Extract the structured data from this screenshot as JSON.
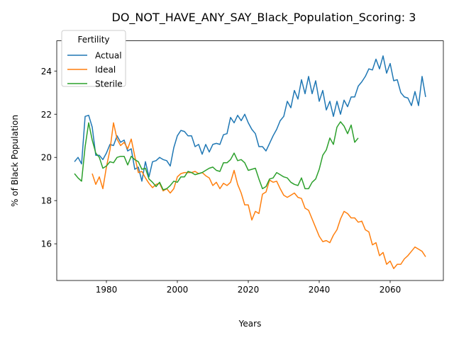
{
  "chart_data": {
    "type": "line",
    "title": "DO_NOT_HAVE_ANY_SAY_Black_Population_Scoring: 3",
    "xlabel": "Years",
    "ylabel": "% of Black Population",
    "xlim": [
      1966,
      2075
    ],
    "ylim": [
      14.3,
      25.4
    ],
    "xticks": [
      1980,
      2000,
      2020,
      2040,
      2060
    ],
    "yticks": [
      16,
      18,
      20,
      22,
      24
    ],
    "grid": false,
    "legend": {
      "title": "Fertility",
      "placement": "top-left"
    },
    "series": [
      {
        "name": "Actual",
        "color": "#1f77b4",
        "x": [
          1971,
          1972,
          1973,
          1974,
          1975,
          1976,
          1977,
          1978,
          1979,
          1980,
          1981,
          1982,
          1983,
          1984,
          1985,
          1986,
          1987,
          1988,
          1989,
          1990,
          1991,
          1992,
          1993,
          1994,
          1995,
          1996,
          1997,
          1998,
          1999,
          2000,
          2001,
          2002,
          2003,
          2004,
          2005,
          2006,
          2007,
          2008,
          2009,
          2010,
          2011,
          2012,
          2013,
          2014,
          2015,
          2016,
          2017,
          2018,
          2019,
          2020,
          2021,
          2022,
          2023,
          2024,
          2025,
          2026,
          2027,
          2028,
          2029,
          2030,
          2031,
          2032,
          2033,
          2034,
          2035,
          2036,
          2037,
          2038,
          2039,
          2040,
          2041,
          2042,
          2043,
          2044,
          2045,
          2046,
          2047,
          2048,
          2049,
          2050,
          2051,
          2052,
          2053,
          2054,
          2055,
          2056,
          2057,
          2058,
          2059,
          2060,
          2061,
          2062,
          2063,
          2064,
          2065,
          2066,
          2067,
          2068,
          2069,
          2070
        ],
        "y": [
          19.8,
          20.0,
          19.7,
          21.9,
          21.95,
          21.4,
          20.1,
          20.1,
          19.9,
          20.2,
          20.6,
          20.55,
          21.0,
          20.7,
          20.8,
          20.3,
          20.4,
          19.45,
          19.55,
          18.9,
          19.8,
          19.1,
          19.8,
          19.85,
          20.0,
          19.9,
          19.85,
          19.6,
          20.45,
          21.0,
          21.25,
          21.2,
          21.0,
          21.0,
          20.5,
          20.6,
          20.15,
          20.6,
          20.25,
          20.6,
          20.65,
          20.6,
          21.05,
          21.1,
          21.85,
          21.6,
          21.95,
          21.7,
          22.0,
          21.6,
          21.3,
          21.1,
          20.5,
          20.5,
          20.3,
          20.65,
          21.0,
          21.3,
          21.7,
          21.9,
          22.6,
          22.3,
          23.1,
          22.7,
          23.6,
          22.95,
          23.75,
          22.95,
          23.55,
          22.6,
          23.1,
          22.2,
          22.6,
          21.9,
          22.6,
          22.0,
          22.65,
          22.35,
          22.8,
          22.8,
          23.3,
          23.5,
          23.75,
          24.1,
          24.05,
          24.55,
          24.1,
          24.7,
          23.9,
          24.35,
          23.55,
          23.6,
          23.0,
          22.8,
          22.75,
          22.4,
          23.05,
          22.4,
          23.75,
          22.8
        ]
      },
      {
        "name": "Ideal",
        "color": "#ff7f0e",
        "x": [
          1976,
          1977,
          1978,
          1979,
          1980,
          1981,
          1982,
          1983,
          1984,
          1985,
          1986,
          1987,
          1988,
          1989,
          1990,
          1991,
          1992,
          1993,
          1994,
          1995,
          1996,
          1997,
          1998,
          1999,
          2000,
          2001,
          2002,
          2003,
          2004,
          2005,
          2006,
          2007,
          2008,
          2009,
          2010,
          2011,
          2012,
          2013,
          2014,
          2015,
          2016,
          2017,
          2018,
          2019,
          2020,
          2021,
          2022,
          2023,
          2024,
          2025,
          2026,
          2027,
          2028,
          2029,
          2030,
          2031,
          2032,
          2033,
          2034,
          2035,
          2036,
          2037,
          2038,
          2039,
          2040,
          2041,
          2042,
          2043,
          2044,
          2045,
          2046,
          2047,
          2048,
          2049,
          2050,
          2051,
          2052,
          2053,
          2054,
          2055,
          2056,
          2057,
          2058,
          2059,
          2060,
          2061,
          2062,
          2063,
          2064,
          2065,
          2066,
          2067,
          2068,
          2069,
          2070
        ],
        "y": [
          19.25,
          18.75,
          19.1,
          18.55,
          19.55,
          20.35,
          21.6,
          20.85,
          20.55,
          20.7,
          20.4,
          20.85,
          20.05,
          19.3,
          19.35,
          19.05,
          18.8,
          18.6,
          18.75,
          18.8,
          18.45,
          18.55,
          18.35,
          18.55,
          19.1,
          19.25,
          19.3,
          19.3,
          19.3,
          19.35,
          19.25,
          19.3,
          19.15,
          19.05,
          18.7,
          18.85,
          18.55,
          18.8,
          18.7,
          18.85,
          19.4,
          18.75,
          18.35,
          17.8,
          17.8,
          17.1,
          17.5,
          17.4,
          18.3,
          18.4,
          18.95,
          18.85,
          18.9,
          18.55,
          18.25,
          18.15,
          18.25,
          18.35,
          18.15,
          18.1,
          17.65,
          17.55,
          17.15,
          16.75,
          16.35,
          16.1,
          16.15,
          16.05,
          16.4,
          16.65,
          17.15,
          17.5,
          17.4,
          17.2,
          17.2,
          17.0,
          17.05,
          16.65,
          16.55,
          15.95,
          16.05,
          15.45,
          15.6,
          15.05,
          15.2,
          14.85,
          15.05,
          15.05,
          15.3,
          15.45,
          15.65,
          15.85,
          15.75,
          15.65,
          15.4
        ]
      },
      {
        "name": "Sterile",
        "color": "#2ca02c",
        "x": [
          1971,
          1972,
          1973,
          1974,
          1975,
          1976,
          1977,
          1978,
          1979,
          1980,
          1981,
          1982,
          1983,
          1984,
          1985,
          1986,
          1987,
          1988,
          1989,
          1990,
          1991,
          1992,
          1993,
          1994,
          1995,
          1996,
          1997,
          1998,
          1999,
          2000,
          2001,
          2002,
          2003,
          2004,
          2005,
          2006,
          2007,
          2008,
          2009,
          2010,
          2011,
          2012,
          2013,
          2014,
          2015,
          2016,
          2017,
          2018,
          2019,
          2020,
          2021,
          2022,
          2023,
          2024,
          2025,
          2026,
          2027,
          2028,
          2029,
          2030,
          2031,
          2032,
          2033,
          2034,
          2035,
          2036,
          2037,
          2038,
          2039,
          2040,
          2041,
          2042,
          2043,
          2044,
          2045,
          2046,
          2047,
          2048,
          2049,
          2050,
          2051
        ],
        "y": [
          19.25,
          19.05,
          18.9,
          20.5,
          21.6,
          20.8,
          20.2,
          20.0,
          19.5,
          19.6,
          19.8,
          19.75,
          20.0,
          20.05,
          20.05,
          19.65,
          20.05,
          19.9,
          19.8,
          19.45,
          19.5,
          19.0,
          18.85,
          18.65,
          18.85,
          18.5,
          18.55,
          18.7,
          18.9,
          18.85,
          19.1,
          19.1,
          19.35,
          19.3,
          19.2,
          19.25,
          19.3,
          19.4,
          19.5,
          19.55,
          19.4,
          19.35,
          19.75,
          19.75,
          19.9,
          20.2,
          19.85,
          19.9,
          19.75,
          19.4,
          19.45,
          19.5,
          19.0,
          18.55,
          18.65,
          19.0,
          19.05,
          19.3,
          19.2,
          19.1,
          19.05,
          18.85,
          18.75,
          18.7,
          19.05,
          18.55,
          18.55,
          18.85,
          19.0,
          19.45,
          20.1,
          20.35,
          20.9,
          20.6,
          21.4,
          21.65,
          21.45,
          21.1,
          21.5,
          20.7,
          20.9
        ]
      }
    ]
  }
}
